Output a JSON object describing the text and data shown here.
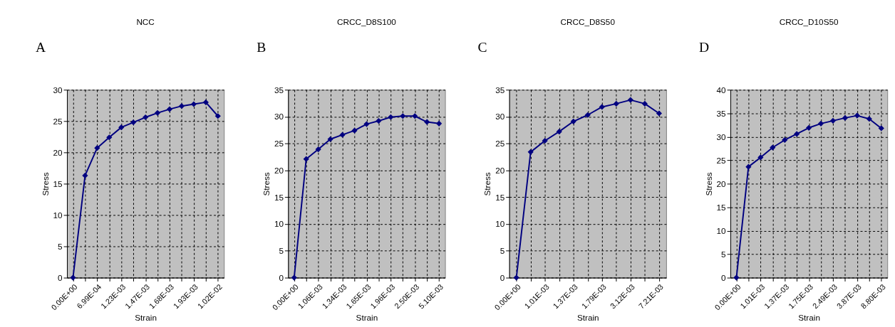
{
  "chart_data": [
    {
      "type": "line",
      "title": "NCC",
      "annotations": [
        "A"
      ],
      "xlabel": "Strain",
      "ylabel": "Stress",
      "marker": "diamond",
      "line_style": "solid",
      "grid": true,
      "color": "#000080",
      "categories": [
        "0.00E+00",
        null,
        "6.99E-04",
        null,
        "1.23E-03",
        null,
        "1.47E-03",
        null,
        "1.68E-03",
        null,
        "1.93E-03",
        null,
        "1.02E-02"
      ],
      "values": [
        0,
        16.3,
        20.7,
        22.4,
        24.0,
        24.8,
        25.6,
        26.3,
        26.9,
        27.4,
        27.7,
        28.0,
        25.8
      ],
      "ylim": [
        0,
        30
      ],
      "yticks": [
        0,
        5,
        10,
        15,
        20,
        25,
        30
      ]
    },
    {
      "type": "line",
      "title": "CRCC_D8S100",
      "annotations": [
        "B"
      ],
      "xlabel": "Strain",
      "ylabel": "Stress",
      "marker": "diamond",
      "line_style": "solid",
      "grid": true,
      "color": "#000080",
      "categories": [
        "0.00E+00",
        null,
        "1.06E-03",
        null,
        "1.34E-03",
        null,
        "1.65E-03",
        null,
        "1.96E-03",
        null,
        "2.50E-03",
        null,
        "5.10E-03"
      ],
      "values": [
        0,
        22.1,
        23.9,
        25.8,
        26.6,
        27.4,
        28.6,
        29.2,
        29.9,
        30.1,
        30.1,
        29.0,
        28.7
      ],
      "ylim": [
        0,
        35
      ],
      "yticks": [
        0,
        5,
        10,
        15,
        20,
        25,
        30,
        35
      ]
    },
    {
      "type": "line",
      "title": "CRCC_D8S50",
      "annotations": [
        "C"
      ],
      "xlabel": "Strain",
      "ylabel": "Stress",
      "marker": "diamond",
      "line_style": "solid",
      "grid": true,
      "color": "#000080",
      "categories": [
        "0.00E+00",
        null,
        "1.01E-03",
        null,
        "1.37E-03",
        null,
        "1.79E-03",
        null,
        "3.12E-03",
        null,
        "7.21E-03"
      ],
      "values": [
        0,
        23.4,
        25.5,
        27.2,
        29.1,
        30.3,
        31.8,
        32.4,
        33.1,
        32.4,
        30.6
      ],
      "ylim": [
        0,
        35
      ],
      "yticks": [
        0,
        5,
        10,
        15,
        20,
        25,
        30,
        35
      ]
    },
    {
      "type": "line",
      "title": "CRCC_D10S50",
      "annotations": [
        "D"
      ],
      "xlabel": "Strain",
      "ylabel": "Stress",
      "marker": "diamond",
      "line_style": "solid",
      "grid": true,
      "color": "#000080",
      "categories": [
        "0.00E+00",
        null,
        "1.01E-03",
        null,
        "1.37E-03",
        null,
        "1.75E-03",
        null,
        "2.49E-03",
        null,
        "3.87E-03",
        null,
        "8.80E-03"
      ],
      "values": [
        0,
        23.6,
        25.6,
        27.7,
        29.3,
        30.6,
        31.9,
        32.8,
        33.4,
        34.0,
        34.5,
        33.8,
        31.8
      ],
      "ylim": [
        0,
        40
      ],
      "yticks": [
        0,
        5,
        10,
        15,
        20,
        25,
        30,
        35,
        40
      ]
    }
  ]
}
